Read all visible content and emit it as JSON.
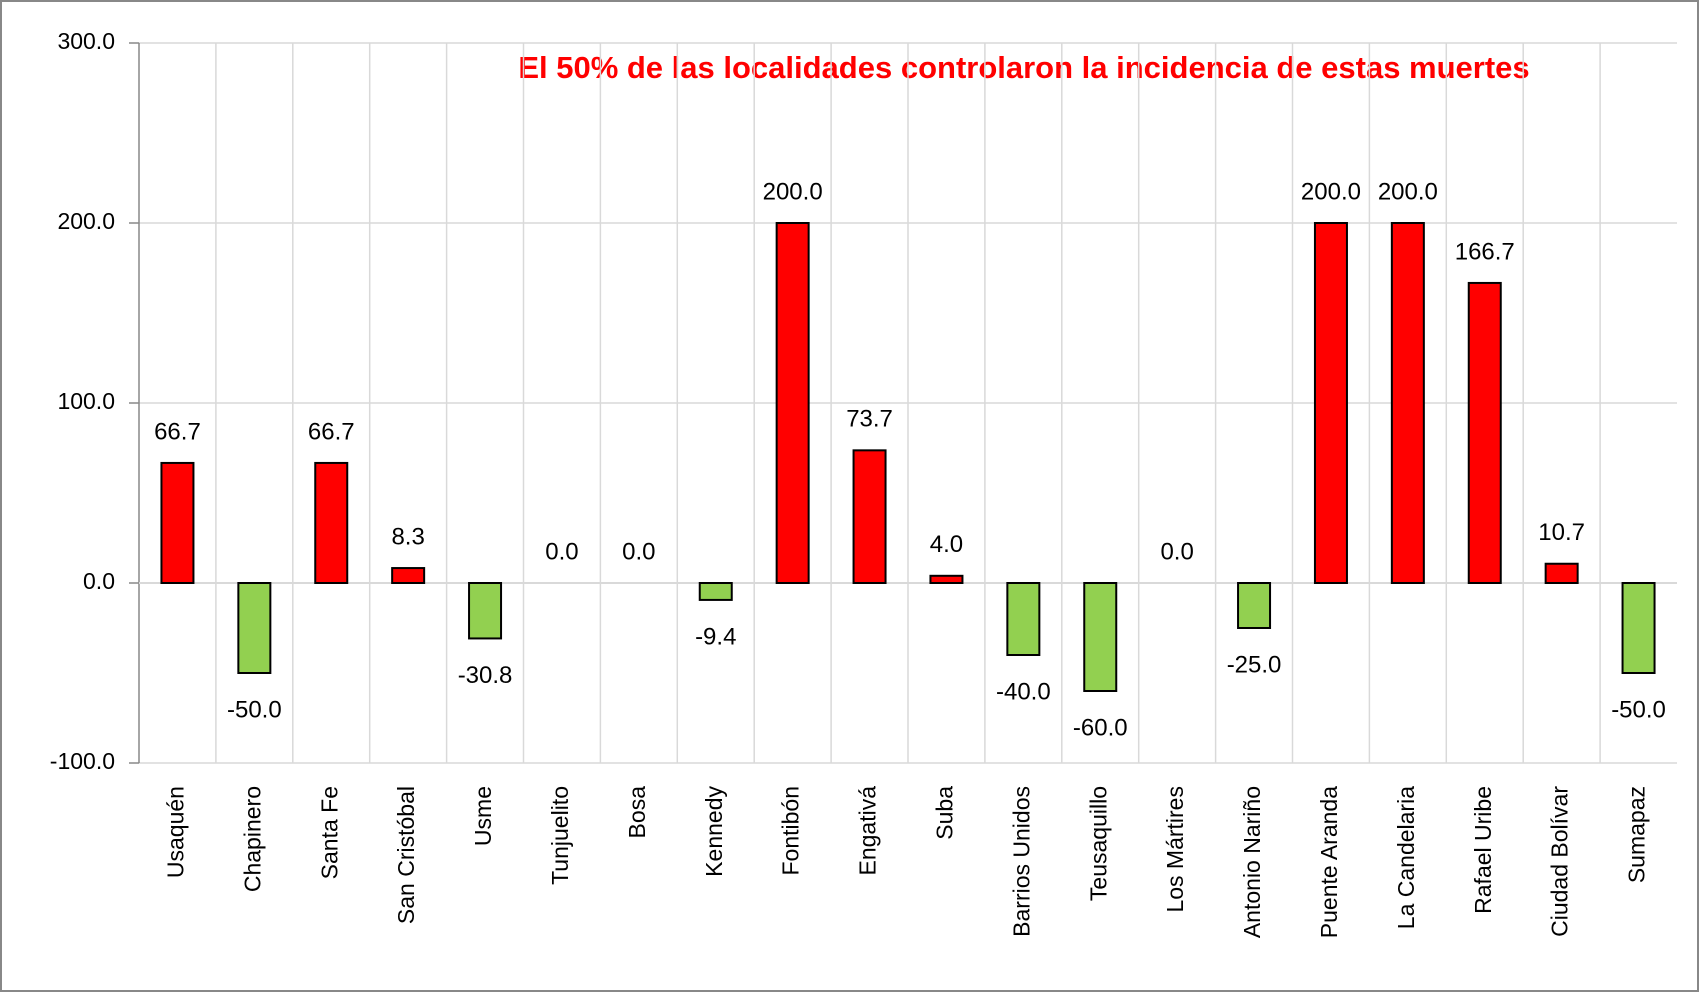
{
  "chart_data": {
    "type": "bar",
    "annotation": "El  50% de las localidades controlaron la incidencia de estas muertes",
    "categories": [
      "Usaquén",
      "Chapinero",
      "Santa Fe",
      "San Cristóbal",
      "Usme",
      "Tunjuelito",
      "Bosa",
      "Kennedy",
      "Fontibón",
      "Engativá",
      "Suba",
      "Barrios Unidos",
      "Teusaquillo",
      "Los Mártires",
      "Antonio Nariño",
      "Puente Aranda",
      "La Candelaria",
      "Rafael Uribe",
      "Ciudad Bolívar",
      "Sumapaz"
    ],
    "values": [
      66.7,
      -50,
      66.7,
      8.3,
      -30.8,
      0,
      0,
      -9.4,
      200,
      73.7,
      4,
      -40,
      -60,
      0,
      -25,
      200,
      200,
      166.7,
      10.7,
      -50
    ],
    "value_labels": [
      "66.7",
      "-50.0",
      "66.7",
      "8.3",
      "-30.8",
      "0.0",
      "0.0",
      "-9.4",
      "200.0",
      "73.7",
      "4.0",
      "-40.0",
      "-60.0",
      "0.0",
      "-25.0",
      "200.0",
      "200.0",
      "166.7",
      "10.7",
      "-50.0"
    ],
    "positive_color": "#ff0000",
    "negative_color": "#92d050",
    "ylim": [
      -100,
      300
    ],
    "yticks": [
      {
        "value": -100,
        "label": "-100.0"
      },
      {
        "value": 0,
        "label": "0.0"
      },
      {
        "value": 100,
        "label": "100.0"
      },
      {
        "value": 200,
        "label": "200.0"
      },
      {
        "value": 300,
        "label": "300.0"
      }
    ],
    "grid": true
  }
}
